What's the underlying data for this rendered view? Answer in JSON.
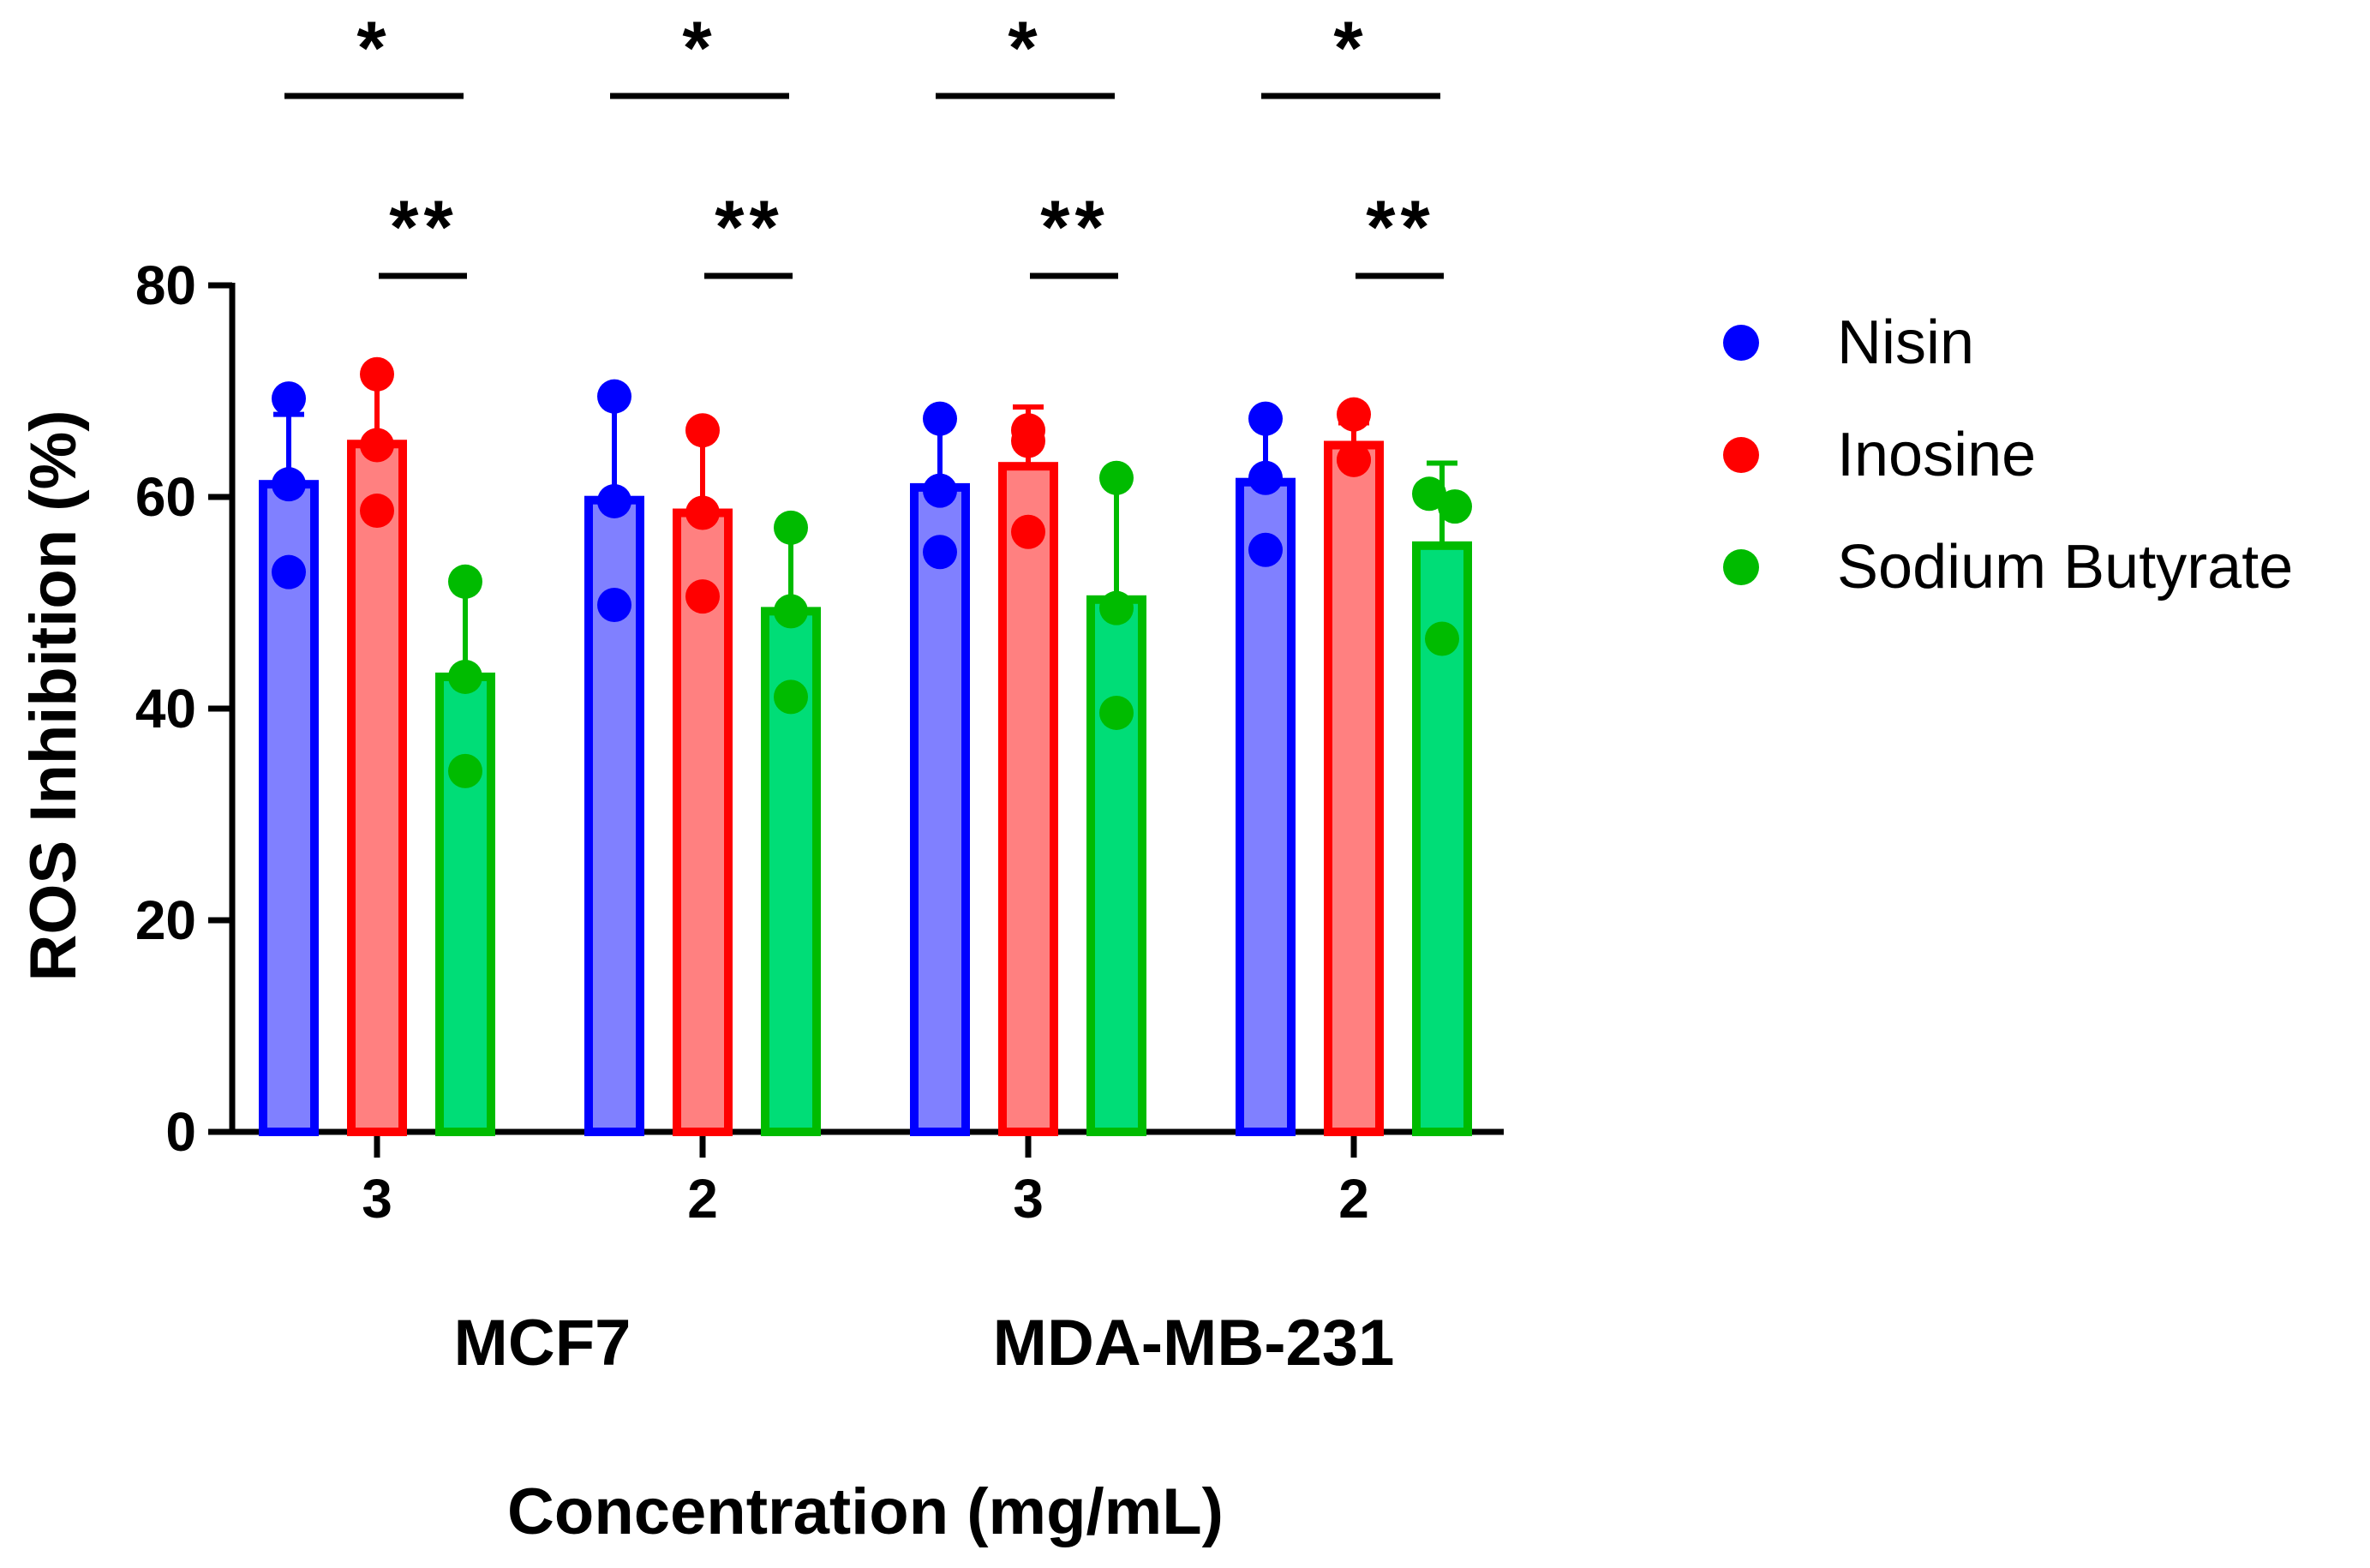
{
  "chart_data": {
    "type": "bar",
    "ylabel": "ROS Inhibition (%)",
    "xlabel": "Concentration (mg/mL)",
    "ylim": [
      0,
      80
    ],
    "yticks": [
      0,
      20,
      40,
      60,
      80
    ],
    "categories": [
      "3",
      "2",
      "3",
      "2"
    ],
    "cell_lines": [
      {
        "label": "MCF7",
        "groups": [
          0,
          1
        ]
      },
      {
        "label": "MDA-MB-231",
        "groups": [
          2,
          3
        ]
      }
    ],
    "legend_position": "right",
    "series": [
      {
        "name": "Nisin",
        "color": "#0000ff",
        "fill": "#8080ff",
        "values": [
          61.2,
          59.7,
          60.9,
          61.4
        ],
        "sd": [
          6.6,
          9.5,
          6.2,
          5.9
        ],
        "points": [
          [
            69.3,
            61.2,
            52.9
          ],
          [
            69.5,
            59.6,
            49.8
          ],
          [
            67.4,
            60.6,
            54.8
          ],
          [
            67.4,
            61.8,
            55.0
          ]
        ]
      },
      {
        "name": "Inosine",
        "color": "#ff0000",
        "fill": "#ff8080",
        "values": [
          65.0,
          58.5,
          62.9,
          64.9
        ],
        "sd": [
          6.6,
          7.9,
          5.6,
          2.1
        ],
        "points": [
          [
            71.6,
            64.9,
            58.7
          ],
          [
            66.3,
            58.5,
            50.6
          ],
          [
            66.3,
            65.3,
            56.7
          ],
          [
            67.8,
            63.5,
            63.5
          ]
        ]
      },
      {
        "name": "Sodium Butyrate",
        "color": "#00bb00",
        "fill": "#00dd77",
        "values": [
          43.0,
          49.2,
          50.3,
          55.4
        ],
        "sd": [
          9.2,
          8.0,
          11.5,
          7.8
        ],
        "points": [
          [
            52.0,
            43.0,
            34.1
          ],
          [
            57.1,
            49.2,
            41.1
          ],
          [
            61.8,
            49.5,
            39.6
          ],
          [
            60.3,
            59.1,
            46.6
          ]
        ]
      }
    ],
    "significance": [
      {
        "group": 0,
        "from": 0,
        "to": 1,
        "label": "*"
      },
      {
        "group": 0,
        "from": 1,
        "to": 2,
        "label": "**"
      },
      {
        "group": 1,
        "from": 0,
        "to": 1,
        "label": "*"
      },
      {
        "group": 1,
        "from": 1,
        "to": 2,
        "label": "**"
      },
      {
        "group": 2,
        "from": 0,
        "to": 1,
        "label": "*"
      },
      {
        "group": 2,
        "from": 1,
        "to": 2,
        "label": "**"
      },
      {
        "group": 3,
        "from": 0,
        "to": 1,
        "label": "*"
      },
      {
        "group": 3,
        "from": 1,
        "to": 2,
        "label": "**"
      }
    ]
  }
}
